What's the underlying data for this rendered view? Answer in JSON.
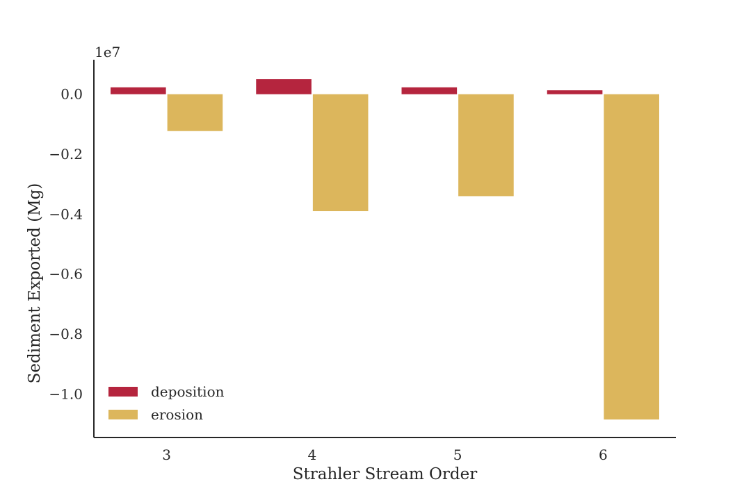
{
  "chart_data": {
    "type": "bar",
    "xlabel": "Strahler Stream Order",
    "ylabel": "Sediment Exported (Mg)",
    "y_offset_label": "1e7",
    "y_scale": 10000000,
    "categories": [
      "3",
      "4",
      "5",
      "6"
    ],
    "series": [
      {
        "name": "deposition",
        "color": "#b5253e",
        "values": [
          230000,
          500000,
          230000,
          130000
        ]
      },
      {
        "name": "erosion",
        "color": "#dcb65c",
        "values": [
          -1230000,
          -3900000,
          -3400000,
          -10850000
        ]
      }
    ],
    "ylim": [
      -11450000,
      1150000
    ],
    "yticks": [
      0,
      -2000000,
      -4000000,
      -6000000,
      -8000000,
      -10000000
    ],
    "ytick_labels": [
      "0.0",
      "−0.2",
      "−0.4",
      "−0.6",
      "−0.8",
      "−1.0"
    ],
    "grid": false,
    "legend_position": "lower-left"
  }
}
